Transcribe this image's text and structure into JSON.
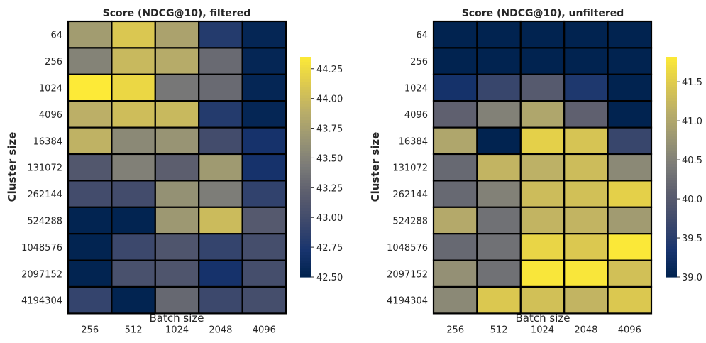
{
  "chart_data": [
    {
      "type": "heatmap",
      "title": "Score (NDCG@10), filtered",
      "xlabel": "Batch size",
      "ylabel": "Cluster size",
      "x": [
        "256",
        "512",
        "1024",
        "2048",
        "4096"
      ],
      "y": [
        "64",
        "256",
        "1024",
        "4096",
        "16384",
        "131072",
        "262144",
        "524288",
        "1048576",
        "2097152",
        "4194304"
      ],
      "values": [
        [
          43.72,
          44.1,
          43.78,
          42.8,
          42.55
        ],
        [
          43.5,
          43.98,
          43.86,
          43.3,
          42.55
        ],
        [
          44.35,
          44.22,
          43.4,
          43.3,
          42.55
        ],
        [
          43.9,
          44.02,
          43.98,
          42.8,
          42.55
        ],
        [
          43.92,
          43.55,
          43.65,
          43.0,
          42.7
        ],
        [
          43.12,
          43.48,
          43.2,
          43.7,
          42.7
        ],
        [
          43.0,
          43.0,
          43.62,
          43.45,
          42.88
        ],
        [
          42.52,
          42.52,
          43.68,
          44.0,
          43.15
        ],
        [
          42.52,
          42.95,
          43.1,
          42.9,
          43.02
        ],
        [
          42.52,
          43.05,
          43.1,
          42.7,
          43.02
        ],
        [
          42.9,
          42.52,
          43.28,
          42.95,
          43.02
        ]
      ],
      "colorbar": {
        "min": 42.5,
        "max": 44.35,
        "ticks": [
          "42.50",
          "42.75",
          "43.00",
          "43.25",
          "43.50",
          "43.75",
          "44.00",
          "44.25"
        ]
      }
    },
    {
      "type": "heatmap",
      "title": "Score (NDCG@10), unfiltered",
      "xlabel": "Batch size",
      "ylabel": "Cluster size",
      "x": [
        "256",
        "512",
        "1024",
        "2048",
        "4096"
      ],
      "y": [
        "64",
        "256",
        "1024",
        "4096",
        "16384",
        "131072",
        "262144",
        "524288",
        "1048576",
        "2097152",
        "4194304"
      ],
      "values": [
        [
          39.02,
          39.02,
          39.02,
          39.02,
          39.02
        ],
        [
          39.02,
          39.02,
          39.02,
          39.02,
          39.02
        ],
        [
          39.3,
          39.65,
          40.0,
          39.4,
          39.02
        ],
        [
          40.1,
          40.5,
          41.0,
          40.1,
          39.02
        ],
        [
          41.0,
          39.02,
          41.55,
          41.4,
          39.65
        ],
        [
          40.2,
          41.2,
          41.15,
          41.3,
          40.6
        ],
        [
          40.2,
          40.5,
          41.3,
          41.35,
          41.55
        ],
        [
          41.05,
          40.3,
          41.2,
          41.2,
          40.85
        ],
        [
          40.2,
          40.3,
          41.6,
          41.45,
          41.8
        ],
        [
          40.7,
          40.3,
          41.78,
          41.78,
          41.35
        ],
        [
          40.6,
          41.45,
          41.35,
          41.2,
          41.45
        ]
      ],
      "colorbar": {
        "min": 39.0,
        "max": 41.82,
        "ticks": [
          "39.0",
          "39.5",
          "40.0",
          "40.5",
          "41.0",
          "41.5"
        ]
      }
    }
  ]
}
